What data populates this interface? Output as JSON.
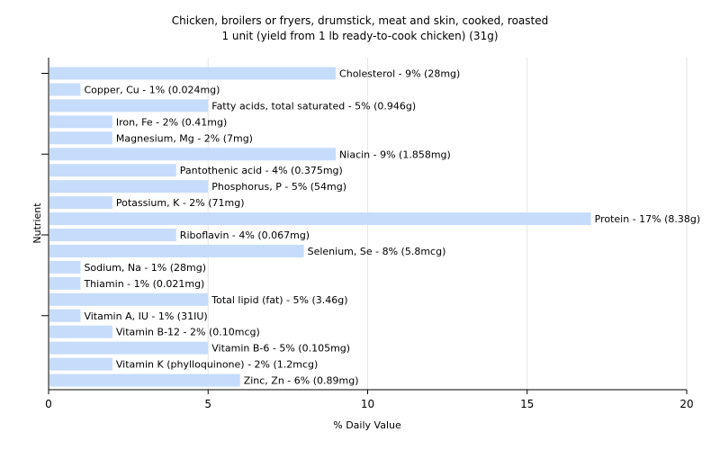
{
  "chart_data": {
    "type": "bar",
    "orientation": "horizontal",
    "title": "Chicken, broilers or fryers, drumstick, meat and skin, cooked, roasted",
    "subtitle": "1 unit (yield from 1 lb ready-to-cook chicken) (31g)",
    "xlabel": "% Daily Value",
    "ylabel": "Nutrient",
    "xlim": [
      0,
      20
    ],
    "xticks": [
      0,
      5,
      10,
      15,
      20
    ],
    "grid": true,
    "bar_color": "#c6dcfb",
    "categories": [
      "Cholesterol",
      "Copper, Cu",
      "Fatty acids, total saturated",
      "Iron, Fe",
      "Magnesium, Mg",
      "Niacin",
      "Pantothenic acid",
      "Phosphorus, P",
      "Potassium, K",
      "Protein",
      "Riboflavin",
      "Selenium, Se",
      "Sodium, Na",
      "Thiamin",
      "Total lipid (fat)",
      "Vitamin A, IU",
      "Vitamin B-12",
      "Vitamin B-6",
      "Vitamin K (phylloquinone)",
      "Zinc, Zn"
    ],
    "values": [
      9,
      1,
      5,
      2,
      2,
      9,
      4,
      5,
      2,
      17,
      4,
      8,
      1,
      1,
      5,
      1,
      2,
      5,
      2,
      6
    ],
    "labels": [
      "Cholesterol - 9% (28mg)",
      "Copper, Cu - 1% (0.024mg)",
      "Fatty acids, total saturated - 5% (0.946g)",
      "Iron, Fe - 2% (0.41mg)",
      "Magnesium, Mg - 2% (7mg)",
      "Niacin - 9% (1.858mg)",
      "Pantothenic acid - 4% (0.375mg)",
      "Phosphorus, P - 5% (54mg)",
      "Potassium, K - 2% (71mg)",
      "Protein - 17% (8.38g)",
      "Riboflavin - 4% (0.067mg)",
      "Selenium, Se - 8% (5.8mcg)",
      "Sodium, Na - 1% (28mg)",
      "Thiamin - 1% (0.021mg)",
      "Total lipid (fat) - 5% (3.46g)",
      "Vitamin A, IU - 1% (31IU)",
      "Vitamin B-12 - 2% (0.10mcg)",
      "Vitamin B-6 - 5% (0.105mg)",
      "Vitamin K (phylloquinone) - 2% (1.2mcg)",
      "Zinc, Zn - 6% (0.89mg)"
    ]
  }
}
